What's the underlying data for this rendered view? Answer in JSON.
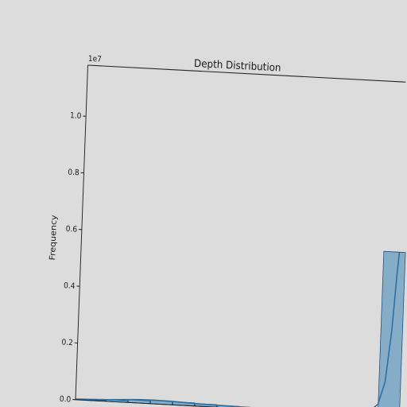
{
  "chart_data": {
    "type": "bar",
    "title": "Depth Distribution",
    "xlabel": "",
    "ylabel": "Frequency",
    "y_scale_factor_label": "1e7",
    "y_scale_factor": 10000000,
    "ylim": [
      0,
      1.18
    ],
    "yticks": [
      0.0,
      0.2,
      0.4,
      0.6,
      0.8,
      1.0
    ],
    "ytick_labels": [
      "0.0",
      "0.2",
      "0.4",
      "0.6",
      "0.8",
      "1.0"
    ],
    "grid": false,
    "legend": "none",
    "visible_xrange": [
      0,
      1
    ],
    "bins": [
      {
        "x": 0.06,
        "value": 0.003
      },
      {
        "x": 0.13,
        "value": 0.006
      },
      {
        "x": 0.2,
        "value": 0.01
      },
      {
        "x": 0.27,
        "value": 0.012
      },
      {
        "x": 0.34,
        "value": 0.011
      },
      {
        "x": 0.41,
        "value": 0.009
      },
      {
        "x": 0.48,
        "value": 0.007
      },
      {
        "x": 0.55,
        "value": 0.005
      },
      {
        "x": 0.62,
        "value": 0.004
      },
      {
        "x": 0.69,
        "value": 0.003
      },
      {
        "x": 0.76,
        "value": 0.003
      },
      {
        "x": 0.83,
        "value": 0.004
      },
      {
        "x": 0.9,
        "value": 0.008
      },
      {
        "x": 0.985,
        "value": 0.58
      }
    ],
    "kde": [
      [
        0.0,
        0.002
      ],
      [
        0.05,
        0.004
      ],
      [
        0.1,
        0.006
      ],
      [
        0.15,
        0.009
      ],
      [
        0.2,
        0.012
      ],
      [
        0.25,
        0.013
      ],
      [
        0.3,
        0.012
      ],
      [
        0.35,
        0.01
      ],
      [
        0.4,
        0.008
      ],
      [
        0.5,
        0.006
      ],
      [
        0.6,
        0.004
      ],
      [
        0.7,
        0.003
      ],
      [
        0.8,
        0.003
      ],
      [
        0.88,
        0.006
      ],
      [
        0.92,
        0.012
      ],
      [
        0.95,
        0.04
      ],
      [
        0.97,
        0.12
      ],
      [
        0.985,
        0.3
      ],
      [
        0.995,
        0.5
      ],
      [
        1.0,
        0.58
      ]
    ],
    "colors": {
      "bar_fill": "#6a9ec2",
      "bar_edge": "#1f4e79",
      "kde_line": "#2c6e9e",
      "axis": "#222222",
      "background": "#dcdcdc"
    }
  }
}
